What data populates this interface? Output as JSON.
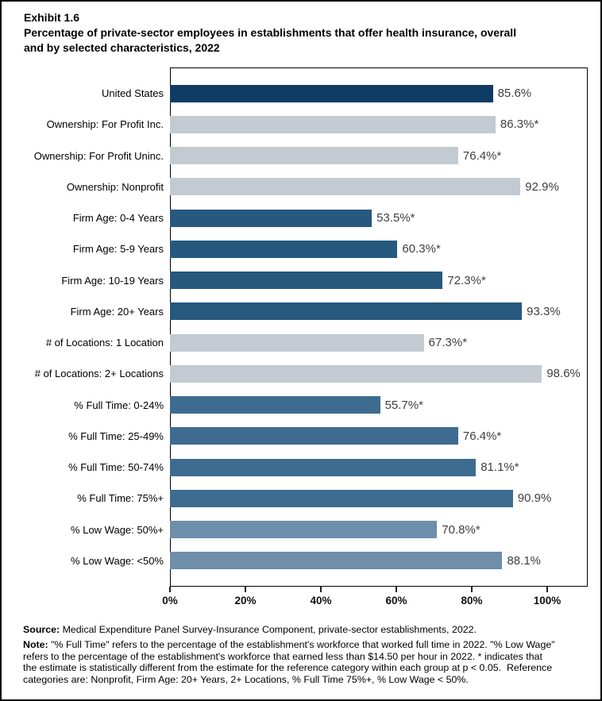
{
  "header": {
    "exhibit": "Exhibit 1.6",
    "title_lines": [
      "Percentage of private-sector employees in establishments that offer health insurance, overall",
      "and by selected characteristics, 2022"
    ]
  },
  "chart_data": {
    "type": "bar",
    "orientation": "horizontal",
    "title": "Percentage of private-sector employees in establishments that offer health insurance, overall and by selected characteristics, 2022",
    "xlabel": "",
    "ylabel": "",
    "grid": false,
    "xlim": [
      0,
      110.7
    ],
    "x_ticks": [
      "0%",
      "20%",
      "40%",
      "60%",
      "80%",
      "100%"
    ],
    "x_tick_values": [
      0,
      20,
      40,
      60,
      80,
      100
    ],
    "colors": {
      "us": "#0F3C63",
      "ownership": "#C4CAD1",
      "firm_age": "#27597E",
      "locations": "#C4CAD1",
      "full_time": "#3E6C90",
      "low_wage": "#6E8EAB"
    },
    "bars": [
      {
        "label": "United States",
        "value": 85.6,
        "display": "85.6%",
        "group": "us"
      },
      {
        "label": "Ownership: For Profit Inc.",
        "value": 86.3,
        "display": "86.3%*",
        "group": "ownership"
      },
      {
        "label": "Ownership: For Profit Uninc.",
        "value": 76.4,
        "display": "76.4%*",
        "group": "ownership"
      },
      {
        "label": "Ownership: Nonprofit",
        "value": 92.9,
        "display": "92.9%",
        "group": "ownership"
      },
      {
        "label": "Firm Age: 0-4 Years",
        "value": 53.5,
        "display": "53.5%*",
        "group": "firm_age"
      },
      {
        "label": "Firm Age: 5-9 Years",
        "value": 60.3,
        "display": "60.3%*",
        "group": "firm_age"
      },
      {
        "label": "Firm Age: 10-19 Years",
        "value": 72.3,
        "display": "72.3%*",
        "group": "firm_age"
      },
      {
        "label": "Firm Age: 20+ Years",
        "value": 93.3,
        "display": "93.3%",
        "group": "firm_age"
      },
      {
        "label": "# of Locations: 1 Location",
        "value": 67.3,
        "display": "67.3%*",
        "group": "locations"
      },
      {
        "label": "# of Locations: 2+ Locations",
        "value": 98.6,
        "display": "98.6%",
        "group": "locations"
      },
      {
        "label": "% Full Time: 0-24%",
        "value": 55.7,
        "display": "55.7%*",
        "group": "full_time"
      },
      {
        "label": "% Full Time: 25-49%",
        "value": 76.4,
        "display": "76.4%*",
        "group": "full_time"
      },
      {
        "label": "% Full Time: 50-74%",
        "value": 81.1,
        "display": "81.1%*",
        "group": "full_time"
      },
      {
        "label": "% Full Time: 75%+",
        "value": 90.9,
        "display": "90.9%",
        "group": "full_time"
      },
      {
        "label": "% Low Wage: 50%+",
        "value": 70.8,
        "display": "70.8%*",
        "group": "low_wage"
      },
      {
        "label": "% Low Wage: <50%",
        "value": 88.1,
        "display": "88.1%",
        "group": "low_wage"
      }
    ]
  },
  "footer": {
    "source_label": "Source:",
    "source_text": " Medical Expenditure Panel Survey-Insurance Component, private-sector establishments, 2022.",
    "note_label": "Note:",
    "note_lines": [
      " \"% Full Time\" refers to the percentage of the establishment's workforce that worked full time in 2022. \"% Low Wage\"",
      "refers to the percentage of the establishment's workforce that earned less than $14.50 per hour in 2022. * indicates that",
      "the estimate is statistically different from the estimate for the reference category within each group at p < 0.05.  Reference",
      "categories are: Nonprofit, Firm Age: 20+ Years, 2+ Locations, % Full Time 75%+, % Low Wage < 50%."
    ]
  }
}
